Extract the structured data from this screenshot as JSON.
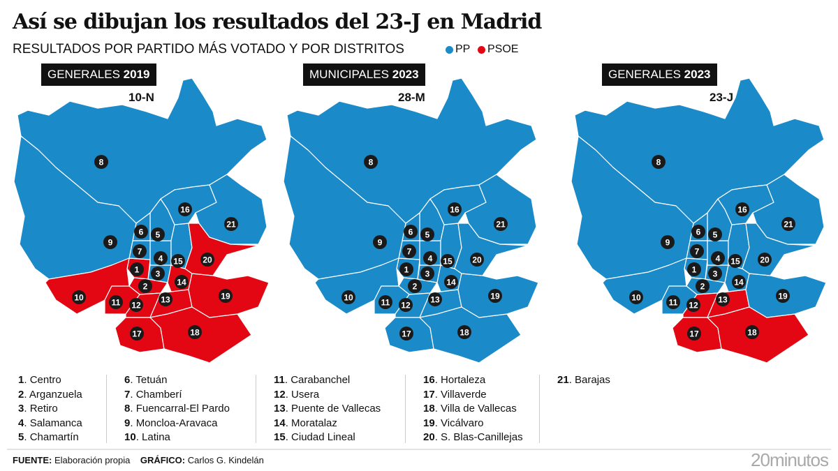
{
  "title": "Así se dibujan los resultados del 23-J en Madrid",
  "subtitle": "RESULTADOS POR PARTIDO MÁS VOTADO Y POR DISTRITOS",
  "legend": [
    {
      "label": "PP",
      "color": "#1a8ac8"
    },
    {
      "label": "PSOE",
      "color": "#e30613"
    }
  ],
  "maps": [
    {
      "title_prefix": "GENERALES",
      "title_year": "2019",
      "date": "10-N",
      "psoe_districts": [
        1,
        2,
        10,
        11,
        12,
        13,
        14,
        17,
        18,
        19,
        20
      ]
    },
    {
      "title_prefix": "MUNICIPALES",
      "title_year": "2023",
      "date": "28-M",
      "psoe_districts": []
    },
    {
      "title_prefix": "GENERALES",
      "title_year": "2023",
      "date": "23-J",
      "psoe_districts": [
        12,
        13,
        17,
        18
      ]
    }
  ],
  "districts": [
    {
      "n": "1",
      "name": "Centro"
    },
    {
      "n": "2",
      "name": "Arganzuela"
    },
    {
      "n": "3",
      "name": "Retiro"
    },
    {
      "n": "4",
      "name": "Salamanca"
    },
    {
      "n": "5",
      "name": "Chamartín"
    },
    {
      "n": "6",
      "name": "Tetuán"
    },
    {
      "n": "7",
      "name": "Chamberí"
    },
    {
      "n": "8",
      "name": "Fuencarral-El Pardo"
    },
    {
      "n": "9",
      "name": "Moncloa-Aravaca"
    },
    {
      "n": "10",
      "name": "Latina"
    },
    {
      "n": "11",
      "name": "Carabanchel"
    },
    {
      "n": "12",
      "name": "Usera"
    },
    {
      "n": "13",
      "name": "Puente de Vallecas"
    },
    {
      "n": "14",
      "name": "Moratalaz"
    },
    {
      "n": "15",
      "name": "Ciudad Lineal"
    },
    {
      "n": "16",
      "name": "Hortaleza"
    },
    {
      "n": "17",
      "name": "Villaverde"
    },
    {
      "n": "18",
      "name": "Villa de Vallecas"
    },
    {
      "n": "19",
      "name": "Vicálvaro"
    },
    {
      "n": "20",
      "name": "S. Blas-Canillejas"
    },
    {
      "n": "21",
      "name": "Barajas"
    }
  ],
  "footer": {
    "source_label": "FUENTE:",
    "source": "Elaboración propia",
    "graphic_label": "GRÁFICO:",
    "graphic": "Carlos G. Kindelán"
  },
  "brand": "20minutos"
}
